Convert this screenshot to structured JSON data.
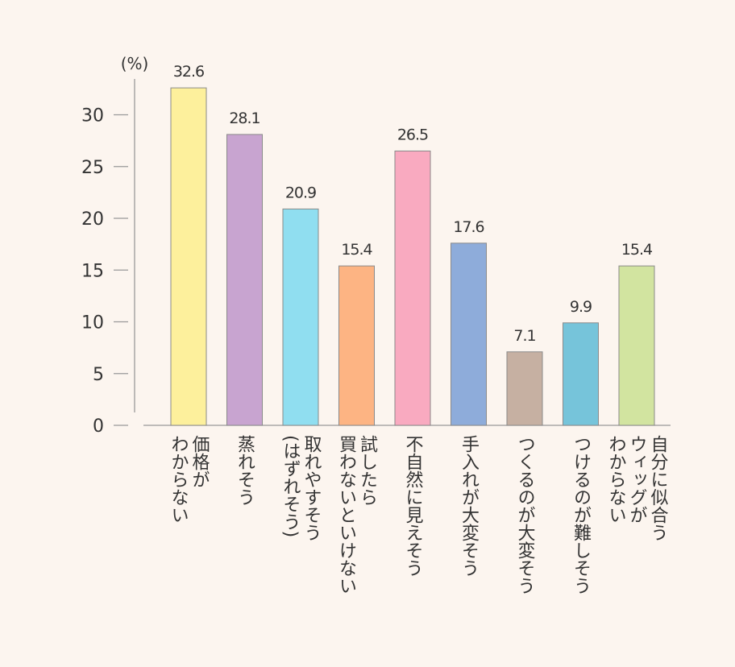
{
  "chart_data": {
    "type": "bar",
    "unit": "(%)",
    "ylim": [
      0,
      35
    ],
    "yticks": [
      0,
      5,
      10,
      15,
      20,
      25,
      30
    ],
    "grid": false,
    "categories": [
      [
        "価格が",
        "わからない"
      ],
      [
        "蒸れそう"
      ],
      [
        "取れやすそう",
        "(はずれそう)"
      ],
      [
        "試したら",
        "買わないといけない"
      ],
      [
        "不自然に見えそう"
      ],
      [
        "手入れが大変そう"
      ],
      [
        "つくるのが大変そう"
      ],
      [
        "つけるのが難しそう"
      ],
      [
        "自分に似合う",
        "ウィッグが",
        "わからない"
      ]
    ],
    "values": [
      32.6,
      28.1,
      20.9,
      15.4,
      26.5,
      17.6,
      7.1,
      9.9,
      15.4
    ],
    "value_labels": [
      "32.6",
      "28.1",
      "20.9",
      "15.4",
      "26.5",
      "17.6",
      "7.1",
      "9.9",
      "15.4"
    ],
    "colors": [
      "#fdf09c",
      "#c8a4d0",
      "#90def0",
      "#fdb483",
      "#f9aac0",
      "#8eacda",
      "#c6b0a2",
      "#76c4da",
      "#d2e4a0"
    ]
  }
}
